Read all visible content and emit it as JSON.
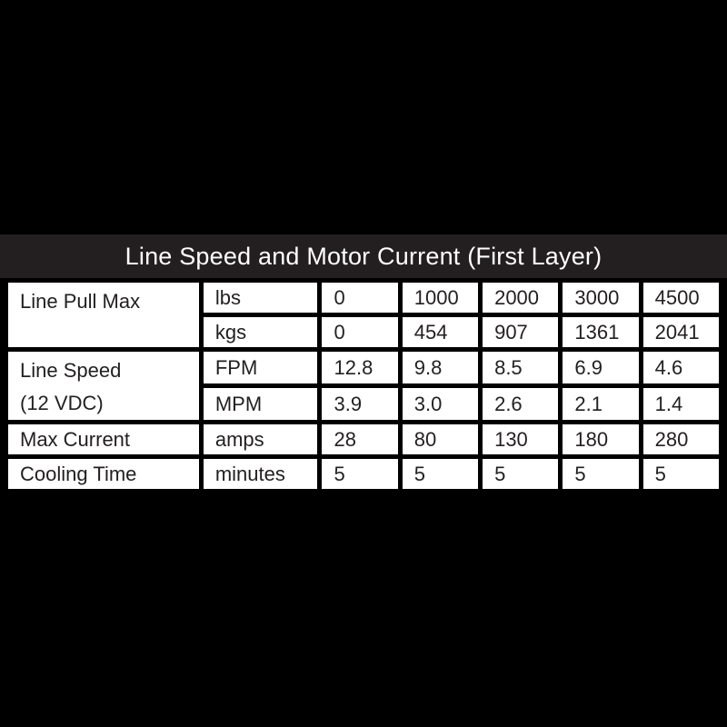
{
  "page": {
    "background_color": "#000000"
  },
  "panel": {
    "title": "Line Speed and Motor Current (First Layer)",
    "title_bg_color": "#231f20",
    "title_text_color": "#fefefe",
    "cell_bg_color": "#ffffff",
    "border_color": "#000000",
    "cell_text_color": "#231f20"
  },
  "table": {
    "row_groups": [
      {
        "label_lines": [
          "Line Pull Max"
        ],
        "rows": [
          {
            "unit": "lbs",
            "values": [
              "0",
              "1000",
              "2000",
              "3000",
              "4500"
            ]
          },
          {
            "unit": "kgs",
            "values": [
              "0",
              "454",
              "907",
              "1361",
              "2041"
            ]
          }
        ]
      },
      {
        "label_lines": [
          "Line Speed",
          "(12 VDC)"
        ],
        "rows": [
          {
            "unit": "FPM",
            "values": [
              "12.8",
              "9.8",
              "8.5",
              "6.9",
              "4.6"
            ]
          },
          {
            "unit": "MPM",
            "values": [
              "3.9",
              "3.0",
              "2.6",
              "2.1",
              "1.4"
            ]
          }
        ]
      },
      {
        "label_lines": [
          "Max Current"
        ],
        "rows": [
          {
            "unit": "amps",
            "values": [
              "28",
              "80",
              "130",
              "180",
              "280"
            ]
          }
        ]
      },
      {
        "label_lines": [
          "Cooling Time"
        ],
        "rows": [
          {
            "unit": "minutes",
            "values": [
              "5",
              "5",
              "5",
              "5",
              "5"
            ]
          }
        ]
      }
    ]
  },
  "chart_data": {
    "type": "table",
    "title": "Line Speed and Motor Current (First Layer)",
    "rows": [
      {
        "label": "Line Pull Max",
        "unit": "lbs",
        "values": [
          0,
          1000,
          2000,
          3000,
          4500
        ]
      },
      {
        "label": "Line Pull Max",
        "unit": "kgs",
        "values": [
          0,
          454,
          907,
          1361,
          2041
        ]
      },
      {
        "label": "Line Speed (12 VDC)",
        "unit": "FPM",
        "values": [
          12.8,
          9.8,
          8.5,
          6.9,
          4.6
        ]
      },
      {
        "label": "Line Speed (12 VDC)",
        "unit": "MPM",
        "values": [
          3.9,
          3.0,
          2.6,
          2.1,
          1.4
        ]
      },
      {
        "label": "Max Current",
        "unit": "amps",
        "values": [
          28,
          80,
          130,
          180,
          280
        ]
      },
      {
        "label": "Cooling Time",
        "unit": "minutes",
        "values": [
          5,
          5,
          5,
          5,
          5
        ]
      }
    ]
  }
}
